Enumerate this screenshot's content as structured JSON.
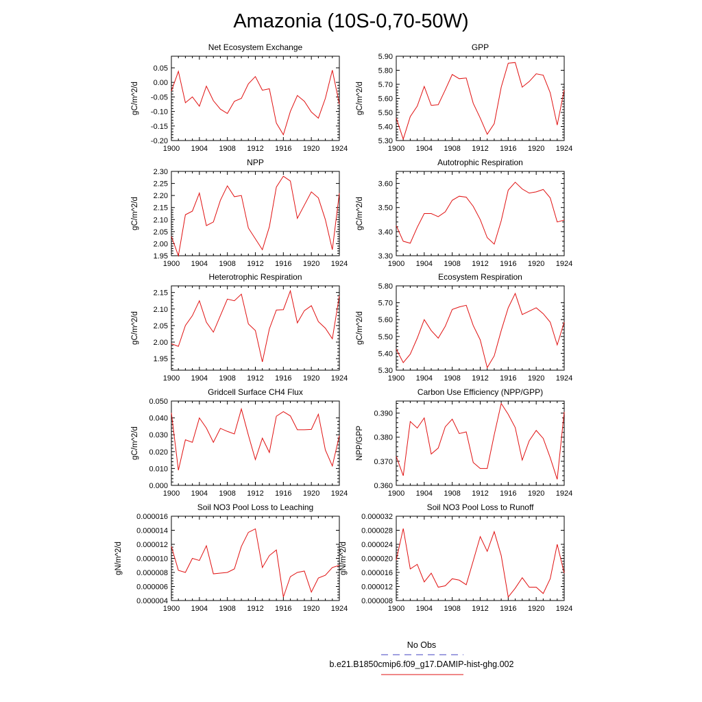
{
  "figure": {
    "title": "Amazonia (10S-0,70-50W)"
  },
  "legend": [
    {
      "label": "No Obs",
      "color": "#4040c0",
      "dash": "dashed"
    },
    {
      "label": "b.e21.B1850cmip6.f09_g17.DAMIP-hist-ghg.002",
      "color": "#e01010",
      "dash": "solid"
    }
  ],
  "chart_data": [
    {
      "type": "line",
      "title": "Net Ecosystem Exchange",
      "ylabel": "gC/m^2/d",
      "xlim": [
        1900,
        1924
      ],
      "ylim": [
        -0.2,
        0.09
      ],
      "x_ticks": [
        1900,
        1904,
        1908,
        1912,
        1916,
        1920,
        1924
      ],
      "y_ticks": [
        -0.2,
        -0.15,
        -0.1,
        -0.05,
        0.0,
        0.05
      ],
      "y_tick_labels": [
        "-0.20",
        "-0.15",
        "-0.10",
        "-0.05",
        "0.00",
        "0.05"
      ],
      "series": [
        {
          "color": "#e01010",
          "x": [
            1900,
            1901,
            1902,
            1903,
            1904,
            1905,
            1906,
            1907,
            1908,
            1909,
            1910,
            1911,
            1912,
            1913,
            1914,
            1915,
            1916,
            1917,
            1918,
            1919,
            1920,
            1921,
            1922,
            1923,
            1924
          ],
          "values": [
            -0.03,
            0.038,
            -0.07,
            -0.05,
            -0.082,
            -0.013,
            -0.063,
            -0.092,
            -0.107,
            -0.065,
            -0.055,
            -0.005,
            0.02,
            -0.027,
            -0.022,
            -0.14,
            -0.18,
            -0.1,
            -0.045,
            -0.065,
            -0.102,
            -0.123,
            -0.055,
            0.042,
            -0.075
          ]
        }
      ]
    },
    {
      "type": "line",
      "title": "GPP",
      "ylabel": "gC/m^2/d",
      "xlim": [
        1900,
        1924
      ],
      "ylim": [
        5.3,
        5.9
      ],
      "x_ticks": [
        1900,
        1904,
        1908,
        1912,
        1916,
        1920,
        1924
      ],
      "y_ticks": [
        5.3,
        5.4,
        5.5,
        5.6,
        5.7,
        5.8,
        5.9
      ],
      "y_tick_labels": [
        "5.30",
        "5.40",
        "5.50",
        "5.60",
        "5.70",
        "5.80",
        "5.90"
      ],
      "series": [
        {
          "color": "#e01010",
          "x": [
            1900,
            1901,
            1902,
            1903,
            1904,
            1905,
            1906,
            1907,
            1908,
            1909,
            1910,
            1911,
            1912,
            1913,
            1914,
            1915,
            1916,
            1917,
            1918,
            1919,
            1920,
            1921,
            1922,
            1923,
            1924
          ],
          "values": [
            5.46,
            5.31,
            5.47,
            5.545,
            5.685,
            5.55,
            5.555,
            5.66,
            5.77,
            5.74,
            5.745,
            5.565,
            5.46,
            5.345,
            5.42,
            5.68,
            5.85,
            5.855,
            5.68,
            5.72,
            5.775,
            5.765,
            5.64,
            5.41,
            5.66
          ]
        }
      ]
    },
    {
      "type": "line",
      "title": "NPP",
      "ylabel": "gC/m^2/d",
      "xlim": [
        1900,
        1924
      ],
      "ylim": [
        1.95,
        2.3
      ],
      "x_ticks": [
        1900,
        1904,
        1908,
        1912,
        1916,
        1920,
        1924
      ],
      "y_ticks": [
        1.95,
        2.0,
        2.05,
        2.1,
        2.15,
        2.2,
        2.25,
        2.3
      ],
      "y_tick_labels": [
        "1.95",
        "2.00",
        "2.05",
        "2.10",
        "2.15",
        "2.20",
        "2.25",
        "2.30"
      ],
      "series": [
        {
          "color": "#e01010",
          "x": [
            1900,
            1901,
            1902,
            1903,
            1904,
            1905,
            1906,
            1907,
            1908,
            1909,
            1910,
            1911,
            1912,
            1913,
            1914,
            1915,
            1916,
            1917,
            1918,
            1919,
            1920,
            1921,
            1922,
            1923,
            1924
          ],
          "values": [
            2.03,
            1.95,
            2.12,
            2.135,
            2.21,
            2.075,
            2.09,
            2.18,
            2.24,
            2.195,
            2.2,
            2.065,
            2.02,
            1.975,
            2.07,
            2.235,
            2.28,
            2.26,
            2.105,
            2.16,
            2.215,
            2.19,
            2.1,
            1.975,
            2.21
          ]
        }
      ]
    },
    {
      "type": "line",
      "title": "Autotrophic Respiration",
      "ylabel": "gC/m^2/d",
      "xlim": [
        1900,
        1924
      ],
      "ylim": [
        3.3,
        3.65
      ],
      "x_ticks": [
        1900,
        1904,
        1908,
        1912,
        1916,
        1920,
        1924
      ],
      "y_ticks": [
        3.3,
        3.4,
        3.5,
        3.6
      ],
      "y_tick_labels": [
        "3.30",
        "3.40",
        "3.50",
        "3.60"
      ],
      "series": [
        {
          "color": "#e01010",
          "x": [
            1900,
            1901,
            1902,
            1903,
            1904,
            1905,
            1906,
            1907,
            1908,
            1909,
            1910,
            1911,
            1912,
            1913,
            1914,
            1915,
            1916,
            1917,
            1918,
            1919,
            1920,
            1921,
            1922,
            1923,
            1924
          ],
          "values": [
            3.425,
            3.36,
            3.352,
            3.418,
            3.475,
            3.475,
            3.462,
            3.482,
            3.53,
            3.547,
            3.543,
            3.505,
            3.45,
            3.375,
            3.348,
            3.445,
            3.572,
            3.605,
            3.577,
            3.56,
            3.565,
            3.575,
            3.54,
            3.44,
            3.448
          ]
        }
      ]
    },
    {
      "type": "line",
      "title": "Heterotrophic Respiration",
      "ylabel": "gC/m^2/d",
      "xlim": [
        1900,
        1924
      ],
      "ylim": [
        1.915,
        2.17
      ],
      "x_ticks": [
        1900,
        1904,
        1908,
        1912,
        1916,
        1920,
        1924
      ],
      "y_ticks": [
        1.95,
        2.0,
        2.05,
        2.1,
        2.15
      ],
      "y_tick_labels": [
        "1.95",
        "2.00",
        "2.05",
        "2.10",
        "2.15"
      ],
      "series": [
        {
          "color": "#e01010",
          "x": [
            1900,
            1901,
            1902,
            1903,
            1904,
            1905,
            1906,
            1907,
            1908,
            1909,
            1910,
            1911,
            1912,
            1913,
            1914,
            1915,
            1916,
            1917,
            1918,
            1919,
            1920,
            1921,
            1922,
            1923,
            1924
          ],
          "values": [
            1.995,
            1.987,
            2.05,
            2.08,
            2.125,
            2.06,
            2.03,
            2.08,
            2.13,
            2.125,
            2.145,
            2.055,
            2.035,
            1.94,
            2.04,
            2.097,
            2.098,
            2.155,
            2.058,
            2.095,
            2.11,
            2.062,
            2.042,
            2.01,
            2.14
          ]
        }
      ]
    },
    {
      "type": "line",
      "title": "Ecosystem Respiration",
      "ylabel": "gC/m^2/d",
      "xlim": [
        1900,
        1924
      ],
      "ylim": [
        5.3,
        5.8
      ],
      "x_ticks": [
        1900,
        1904,
        1908,
        1912,
        1916,
        1920,
        1924
      ],
      "y_ticks": [
        5.3,
        5.4,
        5.5,
        5.6,
        5.7,
        5.8
      ],
      "y_tick_labels": [
        "5.30",
        "5.40",
        "5.50",
        "5.60",
        "5.70",
        "5.80"
      ],
      "series": [
        {
          "color": "#e01010",
          "x": [
            1900,
            1901,
            1902,
            1903,
            1904,
            1905,
            1906,
            1907,
            1908,
            1909,
            1910,
            1911,
            1912,
            1913,
            1914,
            1915,
            1916,
            1917,
            1918,
            1919,
            1920,
            1921,
            1922,
            1923,
            1924
          ],
          "values": [
            5.425,
            5.345,
            5.395,
            5.49,
            5.6,
            5.535,
            5.49,
            5.56,
            5.66,
            5.675,
            5.685,
            5.565,
            5.48,
            5.315,
            5.385,
            5.535,
            5.67,
            5.755,
            5.63,
            5.65,
            5.67,
            5.635,
            5.585,
            5.45,
            5.585
          ]
        }
      ]
    },
    {
      "type": "line",
      "title": "Gridcell Surface CH4 Flux",
      "ylabel": "gC/m^2/d",
      "xlim": [
        1900,
        1924
      ],
      "ylim": [
        0.0,
        0.05
      ],
      "x_ticks": [
        1900,
        1904,
        1908,
        1912,
        1916,
        1920,
        1924
      ],
      "y_ticks": [
        0.0,
        0.01,
        0.02,
        0.03,
        0.04,
        0.05
      ],
      "y_tick_labels": [
        "0.000",
        "0.010",
        "0.020",
        "0.030",
        "0.040",
        "0.050"
      ],
      "series": [
        {
          "color": "#e01010",
          "x": [
            1900,
            1901,
            1902,
            1903,
            1904,
            1905,
            1906,
            1907,
            1908,
            1909,
            1910,
            1911,
            1912,
            1913,
            1914,
            1915,
            1916,
            1917,
            1918,
            1919,
            1920,
            1921,
            1922,
            1923,
            1924
          ],
          "values": [
            0.043,
            0.009,
            0.027,
            0.0255,
            0.04,
            0.034,
            0.0255,
            0.0338,
            0.032,
            0.0305,
            0.0453,
            0.0298,
            0.0153,
            0.028,
            0.0195,
            0.041,
            0.0437,
            0.0412,
            0.033,
            0.033,
            0.0332,
            0.0422,
            0.021,
            0.0115,
            0.0295
          ]
        }
      ]
    },
    {
      "type": "line",
      "title": "Carbon Use Efficiency (NPP/GPP)",
      "ylabel": "NPP/GPP",
      "xlim": [
        1900,
        1924
      ],
      "ylim": [
        0.36,
        0.395
      ],
      "x_ticks": [
        1900,
        1904,
        1908,
        1912,
        1916,
        1920,
        1924
      ],
      "y_ticks": [
        0.36,
        0.37,
        0.38,
        0.39
      ],
      "y_tick_labels": [
        "0.360",
        "0.370",
        "0.380",
        "0.390"
      ],
      "series": [
        {
          "color": "#e01010",
          "x": [
            1900,
            1901,
            1902,
            1903,
            1904,
            1905,
            1906,
            1907,
            1908,
            1909,
            1910,
            1911,
            1912,
            1913,
            1914,
            1915,
            1916,
            1917,
            1918,
            1919,
            1920,
            1921,
            1922,
            1923,
            1924
          ],
          "values": [
            0.372,
            0.364,
            0.3865,
            0.3838,
            0.388,
            0.373,
            0.3755,
            0.3843,
            0.3875,
            0.3815,
            0.3822,
            0.3695,
            0.367,
            0.367,
            0.381,
            0.394,
            0.3895,
            0.384,
            0.3705,
            0.3785,
            0.3828,
            0.3795,
            0.3715,
            0.3625,
            0.3905
          ]
        }
      ]
    },
    {
      "type": "line",
      "title": "Soil NO3 Pool Loss to Leaching",
      "ylabel": "gN/m^2/d",
      "xlim": [
        1900,
        1924
      ],
      "ylim": [
        4e-06,
        1.6e-05
      ],
      "x_ticks": [
        1900,
        1904,
        1908,
        1912,
        1916,
        1920,
        1924
      ],
      "y_ticks": [
        4e-06,
        6e-06,
        8e-06,
        1e-05,
        1.2e-05,
        1.4e-05,
        1.6e-05
      ],
      "y_tick_labels": [
        "0.000004",
        "0.000006",
        "0.000008",
        "0.000010",
        "0.000012",
        "0.000014",
        "0.000016"
      ],
      "series": [
        {
          "color": "#e01010",
          "x": [
            1900,
            1901,
            1902,
            1903,
            1904,
            1905,
            1906,
            1907,
            1908,
            1909,
            1910,
            1911,
            1912,
            1913,
            1914,
            1915,
            1916,
            1917,
            1918,
            1919,
            1920,
            1921,
            1922,
            1923,
            1924
          ],
          "values": [
            1.17e-05,
            8.3e-06,
            8e-06,
            1e-05,
            9.7e-06,
            1.18e-05,
            7.8e-06,
            7.9e-06,
            8e-06,
            8.5e-06,
            1.17e-05,
            1.37e-05,
            1.42e-05,
            8.7e-06,
            1.04e-05,
            1.12e-05,
            4.5e-06,
            7.4e-06,
            8e-06,
            8.2e-06,
            5.2e-06,
            7.2e-06,
            7.6e-06,
            8.7e-06,
            9e-06
          ]
        }
      ]
    },
    {
      "type": "line",
      "title": "Soil NO3 Pool Loss to Runoff",
      "ylabel": "gN/m^2/d",
      "xlim": [
        1900,
        1924
      ],
      "ylim": [
        8e-06,
        3.2e-05
      ],
      "x_ticks": [
        1900,
        1904,
        1908,
        1912,
        1916,
        1920,
        1924
      ],
      "y_ticks": [
        8e-06,
        1.2e-05,
        1.6e-05,
        2e-05,
        2.4e-05,
        2.8e-05,
        3.2e-05
      ],
      "y_tick_labels": [
        "0.000008",
        "0.000012",
        "0.000016",
        "0.000020",
        "0.000024",
        "0.000028",
        "0.000032"
      ],
      "series": [
        {
          "color": "#e01010",
          "x": [
            1900,
            1901,
            1902,
            1903,
            1904,
            1905,
            1906,
            1907,
            1908,
            1909,
            1910,
            1911,
            1912,
            1913,
            1914,
            1915,
            1916,
            1917,
            1918,
            1919,
            1920,
            1921,
            1922,
            1923,
            1924
          ],
          "values": [
            1.95e-05,
            2.85e-05,
            1.7e-05,
            1.83e-05,
            1.33e-05,
            1.58e-05,
            1.18e-05,
            1.22e-05,
            1.42e-05,
            1.38e-05,
            1.25e-05,
            1.93e-05,
            2.62e-05,
            2.2e-05,
            2.76e-05,
            2.08e-05,
            9e-06,
            1.15e-05,
            1.45e-05,
            1.18e-05,
            1.18e-05,
            1e-05,
            1.42e-05,
            2.4e-05,
            1.58e-05
          ]
        }
      ]
    }
  ]
}
